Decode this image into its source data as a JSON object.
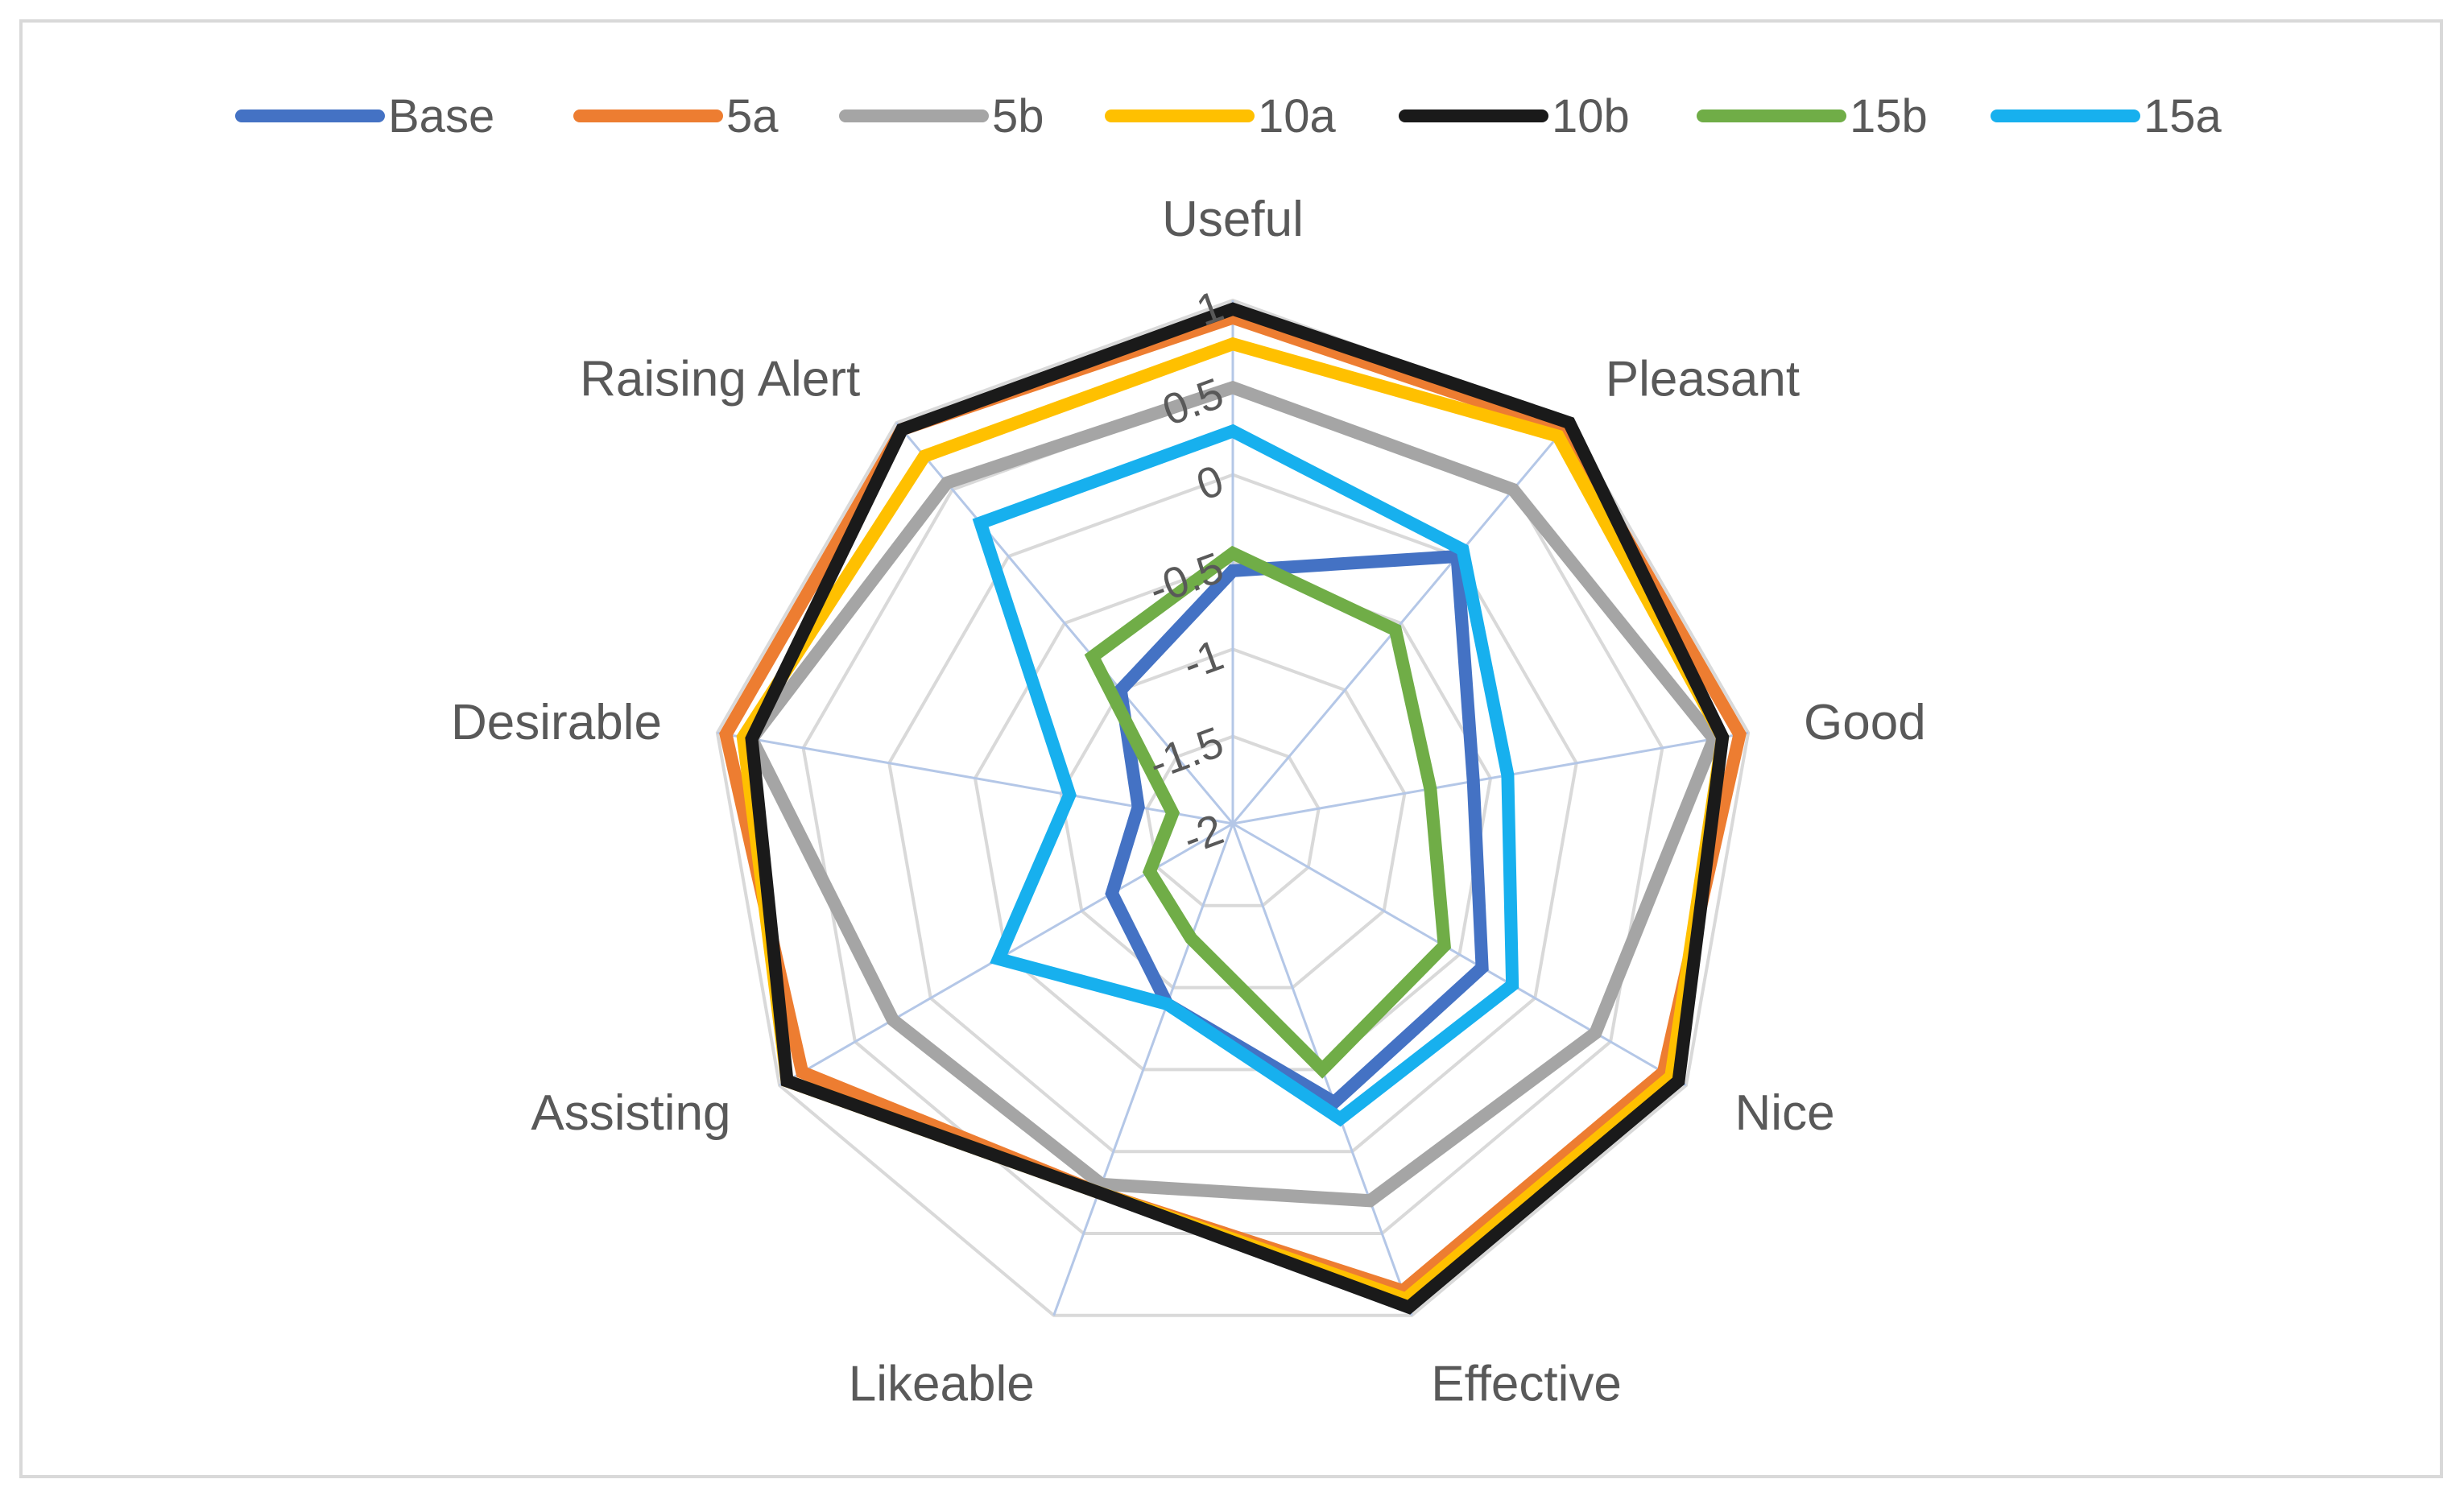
{
  "chart_data": {
    "type": "radar",
    "title": "",
    "axes": [
      "Useful",
      "Pleasant",
      "Good",
      "Nice",
      "Effective",
      "Likeable",
      "Assisting",
      "Desirable",
      "Raising Alert"
    ],
    "ticks": [
      "-2",
      "-1.5",
      "-1",
      "-0.5",
      "0",
      "0.5",
      "1"
    ],
    "range": [
      -2,
      1
    ],
    "legend_position": "top",
    "series": [
      {
        "name": "Base",
        "color": "#4472C4",
        "values": [
          -0.55,
          0.0,
          -0.6,
          -0.35,
          -0.3,
          -0.9,
          -1.2,
          -1.45,
          -1.0
        ]
      },
      {
        "name": "5a",
        "color": "#ED7D31",
        "values": [
          0.9,
          0.95,
          0.95,
          0.85,
          0.85,
          0.25,
          0.85,
          0.95,
          0.95
        ]
      },
      {
        "name": "5b",
        "color": "#A5A5A5",
        "values": [
          0.5,
          0.5,
          0.8,
          0.4,
          0.3,
          0.2,
          0.25,
          0.8,
          0.55
        ]
      },
      {
        "name": "10a",
        "color": "#FFC000",
        "values": [
          0.75,
          0.9,
          0.85,
          0.9,
          0.9,
          0.25,
          0.95,
          0.85,
          0.75
        ]
      },
      {
        "name": "10b",
        "color": "#1A1A1A",
        "values": [
          0.95,
          1.0,
          0.85,
          0.95,
          0.95,
          0.25,
          0.95,
          0.8,
          0.95
        ]
      },
      {
        "name": "15b",
        "color": "#70AD47",
        "values": [
          -0.45,
          -0.55,
          -0.85,
          -0.6,
          -0.5,
          -1.3,
          -1.45,
          -1.65,
          -0.75
        ]
      },
      {
        "name": "15a",
        "color": "#17B0EE",
        "values": [
          0.25,
          0.05,
          -0.4,
          -0.15,
          -0.2,
          -0.9,
          -0.45,
          -1.05,
          0.25
        ]
      }
    ]
  }
}
